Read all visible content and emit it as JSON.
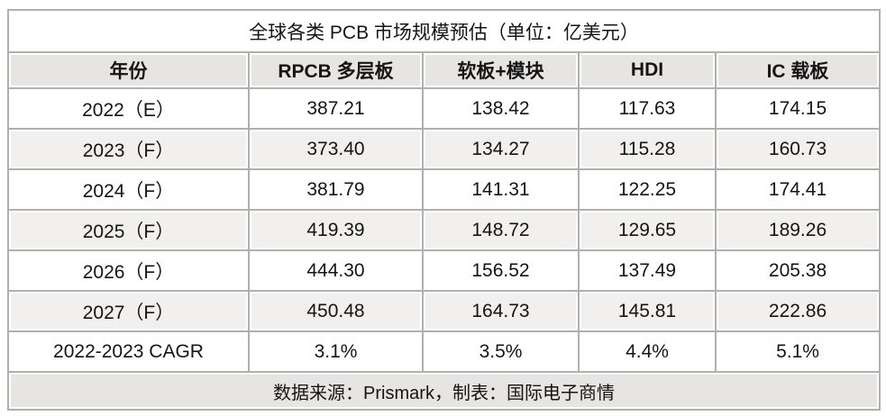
{
  "chart_data": {
    "type": "table",
    "title": "全球各类 PCB 市场规模预估（单位：亿美元）",
    "columns": [
      "年份",
      "RPCB 多层板",
      "软板+模块",
      "HDI",
      "IC 载板"
    ],
    "rows": [
      [
        "2022（E）",
        "387.21",
        "138.42",
        "117.63",
        "174.15"
      ],
      [
        "2023（F）",
        "373.40",
        "134.27",
        "115.28",
        "160.73"
      ],
      [
        "2024（F）",
        "381.79",
        "141.31",
        "122.25",
        "174.41"
      ],
      [
        "2025（F）",
        "419.39",
        "148.72",
        "129.65",
        "189.26"
      ],
      [
        "2026（F）",
        "444.30",
        "156.52",
        "137.49",
        "205.38"
      ],
      [
        "2027（F）",
        "450.48",
        "164.73",
        "145.81",
        "222.86"
      ],
      [
        "2022-2023 CAGR",
        "3.1%",
        "3.5%",
        "4.4%",
        "5.1%"
      ]
    ],
    "footer": "数据来源：Prismark，制表：国际电子商情"
  },
  "colors": {
    "border_color": "#b2b0ad",
    "header_bg": "#e7e5e2",
    "alt_row_bg": "#f1f0ee",
    "text_color": "#151515",
    "page_bg": "#ffffff"
  }
}
